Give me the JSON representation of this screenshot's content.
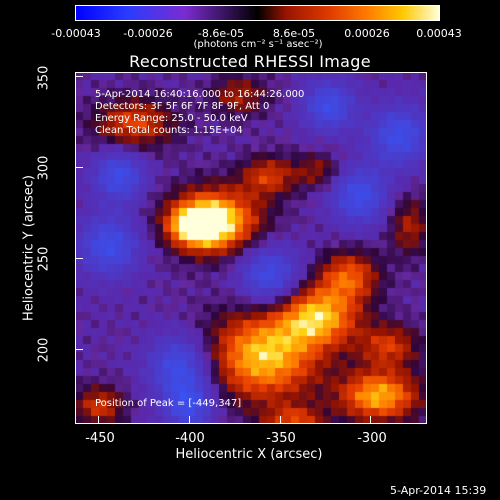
{
  "colorbar": {
    "tick_labels": [
      "-0.00043",
      "-0.00026",
      "-8.6e-05",
      "8.6e-05",
      "0.00026",
      "0.00043"
    ],
    "units_label": "(photons cm⁻² s⁻¹ asec⁻²)",
    "colors": [
      "#0000ff",
      "#7a2cd0",
      "#000000",
      "#e03c00",
      "#ffc800",
      "#ffffd8"
    ]
  },
  "plot": {
    "title": "Reconstructed RHESSI Image",
    "info_lines": [
      "5-Apr-2014 16:40:16.000 to 16:44:26.000",
      "Detectors: 3F 5F 6F 7F 8F 9F, Att 0",
      "Energy Range: 25.0 - 50.0 keV",
      "Clean    Total counts: 1.15E+04"
    ],
    "peak_label": "Position of Peak = [-449,347]",
    "x_axis_label": "Heliocentric X (arcsec)",
    "y_axis_label": "Heliocentric Y (arcsec)",
    "x_ticks": [
      "-450",
      "-400",
      "-350",
      "-300"
    ],
    "y_ticks": [
      "350",
      "300",
      "250",
      "200"
    ],
    "x_range": [
      -465,
      -273
    ],
    "y_range": [
      157,
      352
    ]
  },
  "footer": {
    "date": "5-Apr-2014 15:39"
  }
}
